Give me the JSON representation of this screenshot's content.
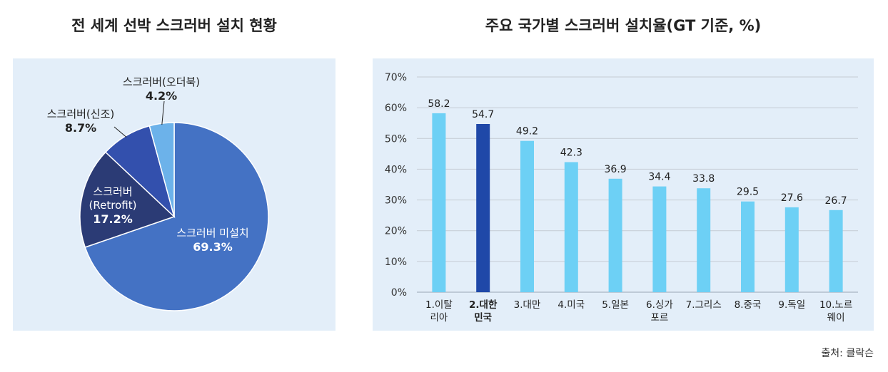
{
  "chart_data": [
    {
      "type": "pie",
      "title": "전 세계 선박 스크러버 설치 현황",
      "slices": [
        {
          "name": "스크러버 미설치",
          "lines": [
            "스크러버 미설치"
          ],
          "value": 69.3,
          "value_label": "69.3%",
          "color": "#4472c4"
        },
        {
          "name": "스크러버 (Retrofit)",
          "lines": [
            "스크러버",
            "(Retrofit)"
          ],
          "value": 17.2,
          "value_label": "17.2%",
          "color": "#2b3b75"
        },
        {
          "name": "스크러버(신조)",
          "lines": [
            "스크러버(신조)"
          ],
          "value": 8.7,
          "value_label": "8.7%",
          "color": "#3350ad"
        },
        {
          "name": "스크러버(오더북)",
          "lines": [
            "스크러버(오더북)"
          ],
          "value": 4.2,
          "value_label": "4.2%",
          "color": "#6cb2ea"
        }
      ]
    },
    {
      "type": "bar",
      "title": "주요 국가별 스크러버 설치율(GT 기준, %)",
      "categories": [
        [
          "1.이탈",
          "리아"
        ],
        [
          "2.대한",
          "민국"
        ],
        [
          "3.대만"
        ],
        [
          "4.미국"
        ],
        [
          "5.일본"
        ],
        [
          "6.싱가",
          "포르"
        ],
        [
          "7.그리스"
        ],
        [
          "8.중국"
        ],
        [
          "9.독일"
        ],
        [
          "10.노르",
          "웨이"
        ]
      ],
      "values": [
        58.2,
        54.7,
        49.2,
        42.3,
        36.9,
        34.4,
        33.8,
        29.5,
        27.6,
        26.7
      ],
      "value_labels": [
        "58.2",
        "54.7",
        "49.2",
        "42.3",
        "36.9",
        "34.4",
        "33.8",
        "29.5",
        "27.6",
        "26.7"
      ],
      "highlight_index": 1,
      "bar_color": "#6dd0f5",
      "highlight_color": "#1f48a8",
      "yticks": [
        "0%",
        "10%",
        "20%",
        "30%",
        "40%",
        "50%",
        "60%",
        "70%"
      ],
      "ylim": [
        0,
        70
      ],
      "grid": true
    }
  ],
  "source": "출처: 클락슨"
}
